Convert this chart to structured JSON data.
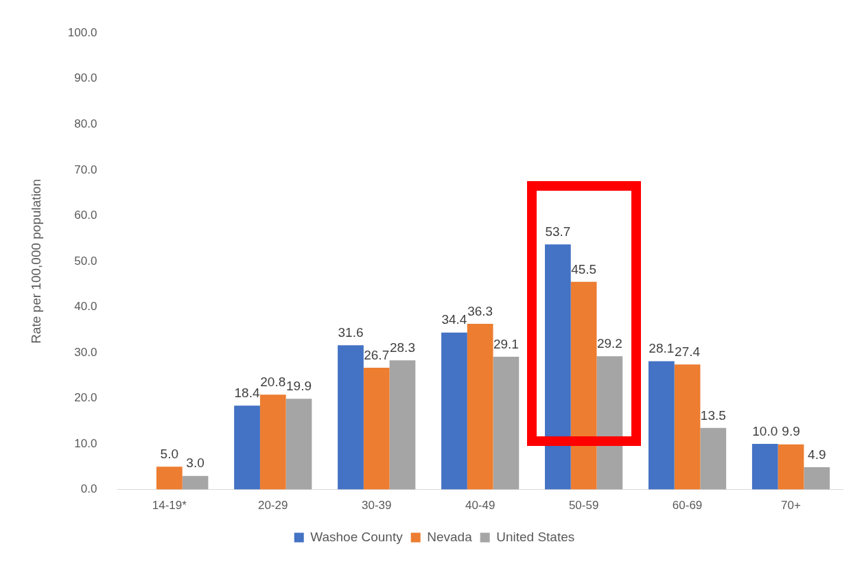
{
  "chart_data": {
    "type": "bar",
    "ylabel": "Rate per 100,000 population",
    "categories": [
      "14-19*",
      "20-29",
      "30-39",
      "40-49",
      "50-59",
      "60-69",
      "70+"
    ],
    "series": [
      {
        "name": "Washoe County",
        "color": "#4472c4",
        "values": [
          null,
          18.4,
          31.6,
          34.4,
          53.7,
          28.1,
          10.0
        ],
        "value_labels": [
          null,
          "18.4",
          "31.6",
          "34.4",
          "53.7",
          "28.1",
          "10.0"
        ]
      },
      {
        "name": "Nevada",
        "color": "#ed7d31",
        "values": [
          5.0,
          20.8,
          26.7,
          36.3,
          45.5,
          27.4,
          9.9
        ],
        "value_labels": [
          "5.0",
          "20.8",
          "26.7",
          "36.3",
          "45.5",
          "27.4",
          "9.9"
        ]
      },
      {
        "name": "United States",
        "color": "#a5a5a5",
        "values": [
          3.0,
          19.9,
          28.3,
          29.1,
          29.2,
          13.5,
          4.9
        ],
        "value_labels": [
          "3.0",
          "19.9",
          "28.3",
          "29.1",
          "29.2",
          "13.5",
          "4.9"
        ]
      }
    ],
    "ylim": [
      0,
      100
    ],
    "yticks": [
      {
        "value": 0,
        "label": "0.0"
      },
      {
        "value": 10,
        "label": "10.0"
      },
      {
        "value": 20,
        "label": "20.0"
      },
      {
        "value": 30,
        "label": "30.0"
      },
      {
        "value": 40,
        "label": "40.0"
      },
      {
        "value": 50,
        "label": "50.0"
      },
      {
        "value": 60,
        "label": "60.0"
      },
      {
        "value": 70,
        "label": "70.0"
      },
      {
        "value": 80,
        "label": "80.0"
      },
      {
        "value": 90,
        "label": "90.0"
      },
      {
        "value": 100,
        "label": "100.0"
      }
    ],
    "grid": false,
    "legend": "bottom"
  }
}
